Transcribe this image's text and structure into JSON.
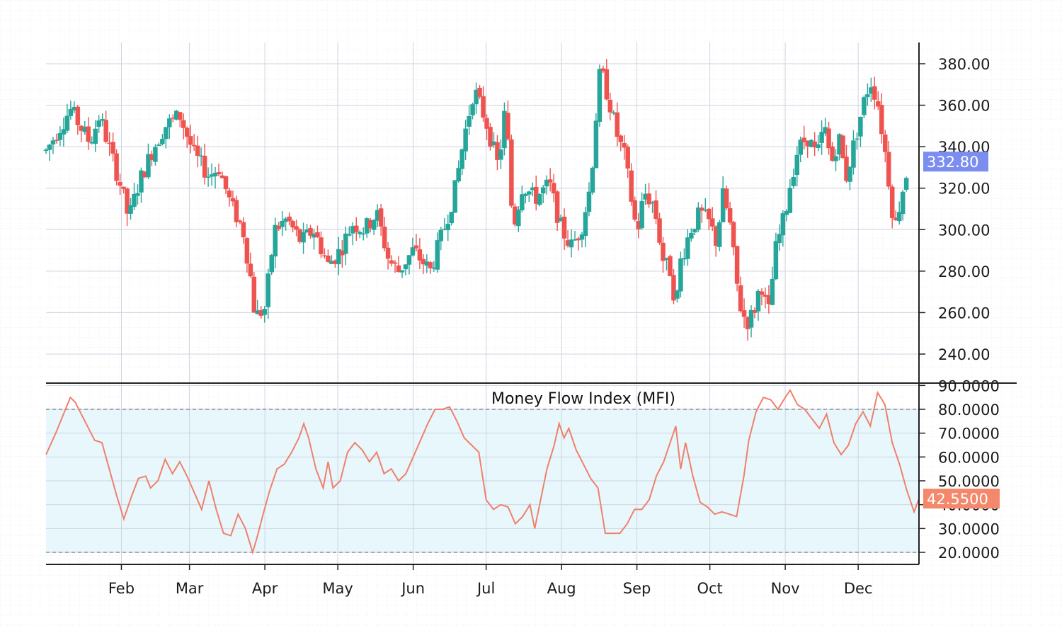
{
  "chart_data": [
    {
      "type": "candlestick",
      "x_ticks": [
        "Feb",
        "Mar",
        "Apr",
        "May",
        "Jun",
        "Jul",
        "Aug",
        "Sep",
        "Oct",
        "Nov",
        "Dec"
      ],
      "y_ticks": [
        "240.00",
        "260.00",
        "280.00",
        "300.00",
        "320.00",
        "340.00",
        "360.00",
        "380.00"
      ],
      "ylim": [
        225,
        396
      ],
      "last_price_label": "332.80",
      "last_price": 332.8,
      "up_color": "#26a69a",
      "down_color": "#ef5350",
      "badge_color": "#7b8ef0",
      "grid": true,
      "price_path": [
        [
          0,
          338
        ],
        [
          7,
          352
        ],
        [
          10,
          358
        ],
        [
          18,
          342
        ],
        [
          22,
          355
        ],
        [
          31,
          320
        ],
        [
          34,
          305
        ],
        [
          38,
          322
        ],
        [
          44,
          339
        ],
        [
          49,
          350
        ],
        [
          55,
          355
        ],
        [
          61,
          336
        ],
        [
          67,
          326
        ],
        [
          71,
          330
        ],
        [
          76,
          312
        ],
        [
          81,
          300
        ],
        [
          84,
          278
        ],
        [
          86,
          258
        ],
        [
          90,
          262
        ],
        [
          94,
          300
        ],
        [
          99,
          305
        ],
        [
          105,
          294
        ],
        [
          110,
          300
        ],
        [
          116,
          283
        ],
        [
          121,
          290
        ],
        [
          126,
          303
        ],
        [
          131,
          300
        ],
        [
          136,
          308
        ],
        [
          141,
          285
        ],
        [
          145,
          280
        ],
        [
          151,
          290
        ],
        [
          158,
          280
        ],
        [
          163,
          298
        ],
        [
          168,
          318
        ],
        [
          172,
          345
        ],
        [
          176,
          368
        ],
        [
          181,
          352
        ],
        [
          186,
          330
        ],
        [
          189,
          360
        ],
        [
          192,
          300
        ],
        [
          196,
          322
        ],
        [
          201,
          315
        ],
        [
          207,
          322
        ],
        [
          212,
          300
        ],
        [
          216,
          292
        ],
        [
          220,
          300
        ],
        [
          224,
          322
        ],
        [
          226,
          352
        ],
        [
          228,
          378
        ],
        [
          232,
          360
        ],
        [
          235,
          345
        ],
        [
          238,
          335
        ],
        [
          240,
          320
        ],
        [
          243,
          298
        ],
        [
          246,
          318
        ],
        [
          250,
          312
        ],
        [
          254,
          284
        ],
        [
          257,
          280
        ],
        [
          259,
          262
        ],
        [
          261,
          285
        ],
        [
          265,
          300
        ],
        [
          269,
          308
        ],
        [
          273,
          303
        ],
        [
          276,
          293
        ],
        [
          278,
          318
        ],
        [
          281,
          305
        ],
        [
          285,
          265
        ],
        [
          288,
          255
        ],
        [
          291,
          260
        ],
        [
          294,
          275
        ],
        [
          297,
          258
        ],
        [
          300,
          290
        ],
        [
          304,
          308
        ],
        [
          306,
          322
        ],
        [
          309,
          338
        ],
        [
          313,
          345
        ],
        [
          317,
          335
        ],
        [
          320,
          350
        ],
        [
          323,
          332
        ],
        [
          326,
          345
        ],
        [
          329,
          325
        ],
        [
          332,
          340
        ],
        [
          336,
          360
        ],
        [
          339,
          372
        ],
        [
          342,
          362
        ],
        [
          345,
          338
        ],
        [
          347,
          320
        ],
        [
          349,
          300
        ],
        [
          352,
          318
        ],
        [
          355,
          332.8
        ]
      ]
    },
    {
      "type": "line",
      "title": "Money Flow Index (MFI)",
      "y_ticks": [
        "20.0000",
        "30.0000",
        "40.0000",
        "50.0000",
        "60.0000",
        "70.0000",
        "80.0000",
        "90.0000"
      ],
      "ylim": [
        15,
        92
      ],
      "overbought": 80,
      "oversold": 20,
      "last_value_label": "42.5500",
      "last_value": 42.55,
      "line_color": "#f0806a",
      "band_color": "#e8f7fc",
      "badge_color": "#f4886c",
      "mfi_path": [
        [
          0,
          61
        ],
        [
          4,
          70
        ],
        [
          8,
          80
        ],
        [
          10,
          85
        ],
        [
          12,
          83
        ],
        [
          14,
          79
        ],
        [
          17,
          73
        ],
        [
          20,
          67
        ],
        [
          23,
          66
        ],
        [
          26,
          55
        ],
        [
          29,
          44
        ],
        [
          32,
          34
        ],
        [
          35,
          43
        ],
        [
          38,
          51
        ],
        [
          41,
          52
        ],
        [
          43,
          47
        ],
        [
          46,
          50
        ],
        [
          49,
          59
        ],
        [
          52,
          53
        ],
        [
          55,
          58
        ],
        [
          58,
          52
        ],
        [
          61,
          45
        ],
        [
          64,
          38
        ],
        [
          67,
          50
        ],
        [
          70,
          38
        ],
        [
          73,
          28
        ],
        [
          76,
          27
        ],
        [
          79,
          36
        ],
        [
          82,
          30
        ],
        [
          85,
          20
        ],
        [
          87,
          27
        ],
        [
          89,
          35
        ],
        [
          92,
          46
        ],
        [
          95,
          55
        ],
        [
          98,
          57
        ],
        [
          101,
          62
        ],
        [
          104,
          68
        ],
        [
          106,
          74
        ],
        [
          108,
          68
        ],
        [
          111,
          55
        ],
        [
          114,
          47
        ],
        [
          116,
          58
        ],
        [
          118,
          47
        ],
        [
          121,
          50
        ],
        [
          124,
          62
        ],
        [
          127,
          66
        ],
        [
          130,
          63
        ],
        [
          133,
          58
        ],
        [
          136,
          62
        ],
        [
          139,
          53
        ],
        [
          142,
          55
        ],
        [
          145,
          50
        ],
        [
          148,
          53
        ],
        [
          151,
          60
        ],
        [
          154,
          67
        ],
        [
          157,
          74
        ],
        [
          160,
          80
        ],
        [
          163,
          80
        ],
        [
          166,
          81
        ],
        [
          169,
          75
        ],
        [
          172,
          68
        ],
        [
          175,
          65
        ],
        [
          178,
          62
        ],
        [
          181,
          42
        ],
        [
          184,
          38
        ],
        [
          187,
          40
        ],
        [
          190,
          39
        ],
        [
          193,
          32
        ],
        [
          196,
          35
        ],
        [
          199,
          40
        ],
        [
          201,
          30
        ],
        [
          203,
          40
        ],
        [
          206,
          55
        ],
        [
          209,
          65
        ],
        [
          211,
          74
        ],
        [
          213,
          68
        ],
        [
          215,
          72
        ],
        [
          218,
          63
        ],
        [
          221,
          57
        ],
        [
          224,
          51
        ],
        [
          227,
          47
        ],
        [
          230,
          28
        ],
        [
          233,
          28
        ],
        [
          236,
          28
        ],
        [
          239,
          32
        ],
        [
          242,
          38
        ],
        [
          245,
          38
        ],
        [
          248,
          42
        ],
        [
          251,
          52
        ],
        [
          254,
          58
        ],
        [
          257,
          67
        ],
        [
          259,
          73
        ],
        [
          261,
          55
        ],
        [
          263,
          66
        ],
        [
          266,
          52
        ],
        [
          269,
          41
        ],
        [
          272,
          39
        ],
        [
          275,
          36
        ],
        [
          278,
          37
        ],
        [
          281,
          36
        ],
        [
          284,
          35
        ],
        [
          287,
          52
        ],
        [
          289,
          67
        ],
        [
          292,
          79
        ],
        [
          295,
          85
        ],
        [
          298,
          84
        ],
        [
          301,
          80
        ],
        [
          304,
          85
        ],
        [
          306,
          88
        ],
        [
          309,
          82
        ],
        [
          312,
          80
        ],
        [
          315,
          76
        ],
        [
          318,
          72
        ],
        [
          321,
          78
        ],
        [
          324,
          66
        ],
        [
          327,
          61
        ],
        [
          330,
          65
        ],
        [
          333,
          74
        ],
        [
          336,
          79
        ],
        [
          339,
          73
        ],
        [
          342,
          87
        ],
        [
          345,
          82
        ],
        [
          348,
          66
        ],
        [
          351,
          57
        ],
        [
          354,
          46
        ],
        [
          357,
          37
        ],
        [
          359,
          42.55
        ]
      ]
    }
  ]
}
